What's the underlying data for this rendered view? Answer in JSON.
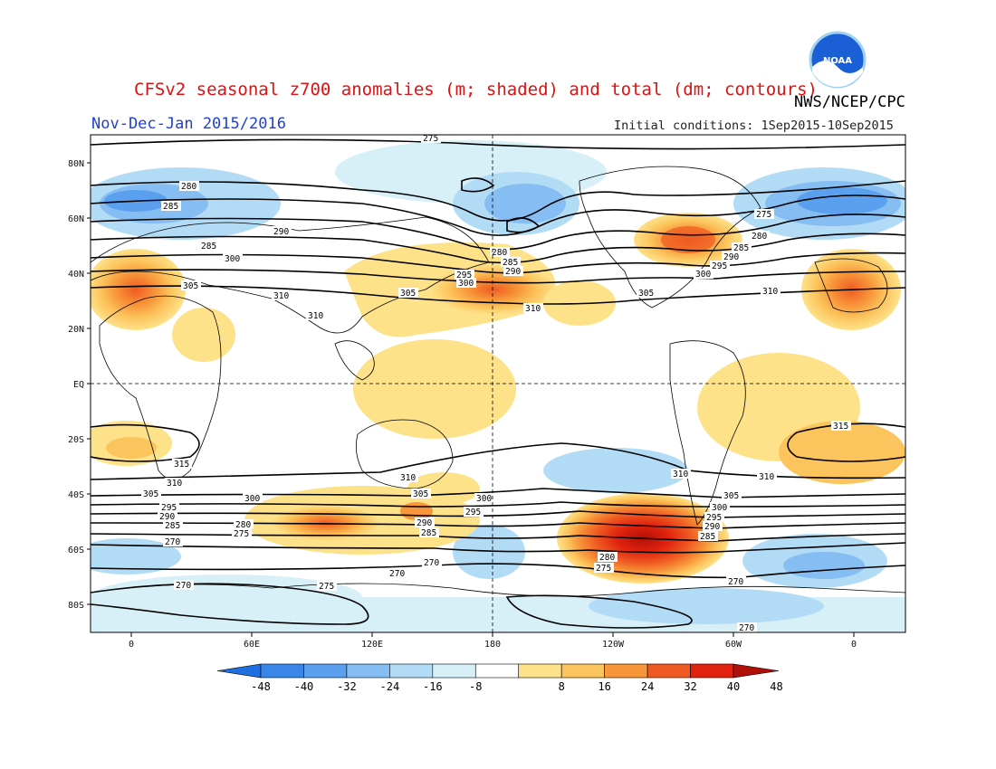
{
  "header": {
    "title": "CFSv2 seasonal z700 anomalies (m; shaded) and total (dm; contours)",
    "agency": "NWS/NCEP/CPC",
    "period": "Nov-Dec-Jan 2015/2016",
    "initial_conditions": "Initial conditions: 1Sep2015-10Sep2015",
    "logo_text": "NOAA"
  },
  "map": {
    "lat_labels": [
      "80N",
      "60N",
      "40N",
      "20N",
      "EQ",
      "20S",
      "40S",
      "60S",
      "80S"
    ],
    "lon_labels": [
      "0",
      "60E",
      "120E",
      "180",
      "120W",
      "60W",
      "0"
    ]
  },
  "colorbar": {
    "ticks": [
      "-48",
      "-40",
      "-32",
      "-24",
      "-16",
      "-8",
      "8",
      "16",
      "24",
      "32",
      "40",
      "48"
    ],
    "colors": [
      "#1f6fe0",
      "#3a86e8",
      "#5aa0ee",
      "#86bdf2",
      "#b2dcf5",
      "#d7f0f8",
      "#ffffff",
      "#fde28a",
      "#fcc45c",
      "#f7963a",
      "#ef5a22",
      "#e0220f",
      "#b01008"
    ]
  },
  "contour_labels": [
    "275",
    "280",
    "285",
    "290",
    "295",
    "300",
    "305",
    "310",
    "315",
    "270"
  ]
}
